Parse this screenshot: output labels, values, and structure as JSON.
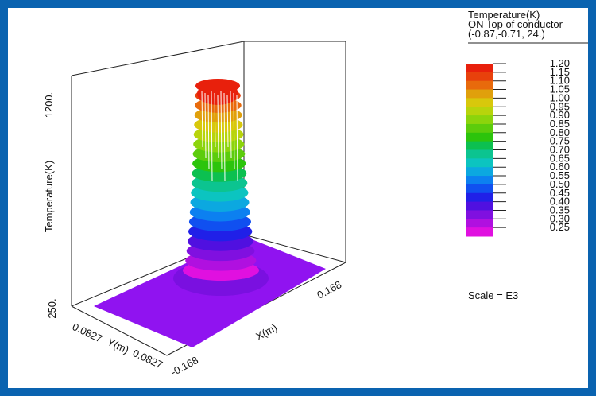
{
  "chart_data": {
    "type": "surface3d",
    "title": "",
    "legend": {
      "title_lines": [
        "Temperature(K)",
        "ON Top of conductor",
        "(-0.87,-0.71, 24.)"
      ],
      "levels": [
        1.2,
        1.15,
        1.1,
        1.05,
        1.0,
        0.95,
        0.9,
        0.85,
        0.8,
        0.75,
        0.7,
        0.65,
        0.6,
        0.55,
        0.5,
        0.45,
        0.4,
        0.35,
        0.3,
        0.25
      ],
      "level_labels": [
        "1.20",
        "1.15",
        "1.10",
        "1.05",
        "1.00",
        "0.95",
        "0.90",
        "0.85",
        "0.80",
        "0.75",
        "0.70",
        "0.65",
        "0.60",
        "0.55",
        "0.50",
        "0.45",
        "0.40",
        "0.35",
        "0.30",
        "0.25"
      ],
      "colors": [
        "#e8200c",
        "#e8410c",
        "#e86a0c",
        "#e0a00c",
        "#d8c80c",
        "#b8d40c",
        "#8cd40c",
        "#5ccc0c",
        "#2cc40c",
        "#0cc050",
        "#0cc490",
        "#0cc4c0",
        "#0ca8e0",
        "#0c80f0",
        "#1050f0",
        "#2020e8",
        "#5010e0",
        "#8010e0",
        "#b010e0",
        "#e010e0"
      ],
      "scale_text": "Scale = E3"
    },
    "z_axis": {
      "label": "Temperature(K)",
      "ticks": [
        "250.",
        "1200."
      ],
      "range": [
        250,
        1200
      ]
    },
    "x_axis": {
      "label": "X(m)",
      "ticks": [
        "-0.168",
        "0.168"
      ],
      "range": [
        -0.168,
        0.168
      ]
    },
    "y_axis": {
      "label": "Y(m)",
      "ticks": [
        "0.0827",
        "0.0827"
      ]
    },
    "peak_value": 1200,
    "base_value": 250
  }
}
